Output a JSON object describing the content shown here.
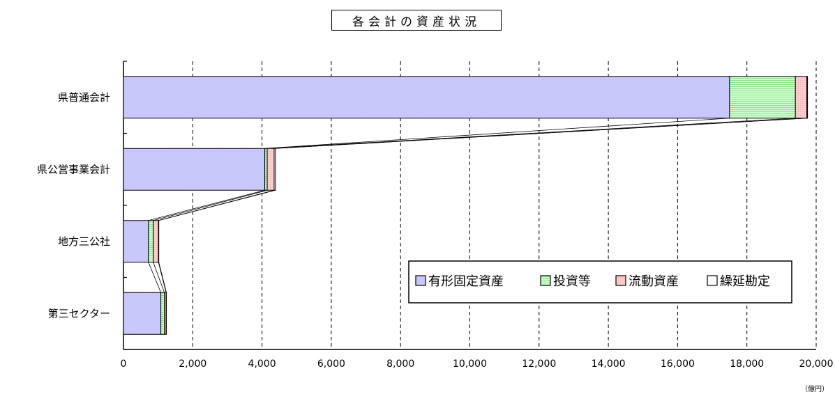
{
  "chart_data": {
    "type": "bar",
    "orientation": "horizontal",
    "stacked": true,
    "title": "各会計の資産状況",
    "unit": "（億円）",
    "categories": [
      "県普通会計",
      "県公営事業会計",
      "地方三公社",
      "第三セクター"
    ],
    "series": [
      {
        "name": "有形固定資産",
        "color": "#ccccff",
        "values": [
          17500,
          4080,
          720,
          1080
        ]
      },
      {
        "name": "投資等",
        "color": "#ccffcc",
        "values": [
          1900,
          70,
          140,
          100
        ]
      },
      {
        "name": "流動資産",
        "color": "#ffcccc",
        "values": [
          330,
          200,
          150,
          50
        ]
      },
      {
        "name": "繰延勘定",
        "color": "#ffffff",
        "values": [
          20,
          40,
          10,
          10
        ]
      }
    ],
    "x_axis": {
      "min": 0,
      "max": 20000,
      "step": 2000,
      "tick_labels": [
        "0",
        "2,000",
        "4,000",
        "6,000",
        "8,000",
        "10,000",
        "12,000",
        "14,000",
        "16,000",
        "18,000",
        "20,000"
      ]
    },
    "grid": "vertical dashed",
    "legend_position": "inside-right"
  }
}
